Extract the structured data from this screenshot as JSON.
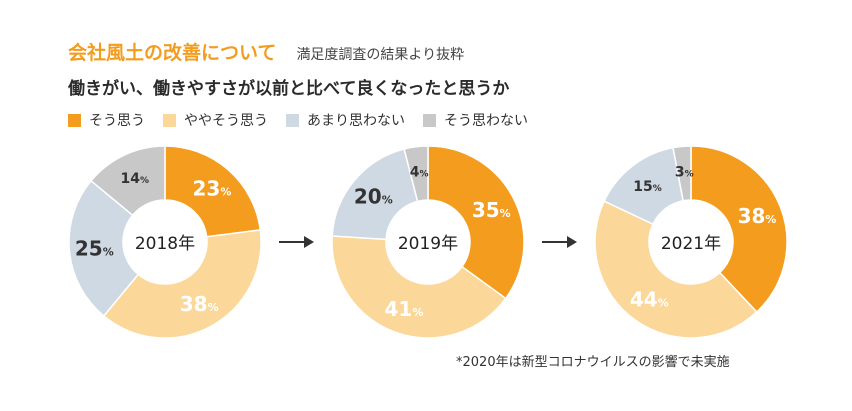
{
  "header": {
    "title": "会社風土の改善について",
    "subtitle": "満足度調査の結果より抜粋",
    "question": "働きがい、働きやすさが以前と比べて良くなったと思うか"
  },
  "footnote": "*2020年は新型コロナウイルスの影響で未実施",
  "colors": {
    "そう思う": "#f39c1e",
    "ややそう思う": "#fbd79a",
    "あまり思わない": "#cfd9e3",
    "そう思わない": "#c8c8c8",
    "arrow": "#333333"
  },
  "chart_data": {
    "type": "pie",
    "series_names": [
      "そう思う",
      "ややそう思う",
      "あまり思わない",
      "そう思わない"
    ],
    "charts": [
      {
        "label": "2018年",
        "values": [
          23,
          38,
          25,
          14
        ]
      },
      {
        "label": "2019年",
        "values": [
          35,
          41,
          20,
          4
        ]
      },
      {
        "label": "2021年",
        "values": [
          38,
          44,
          15,
          3
        ]
      }
    ],
    "unit": "%"
  }
}
